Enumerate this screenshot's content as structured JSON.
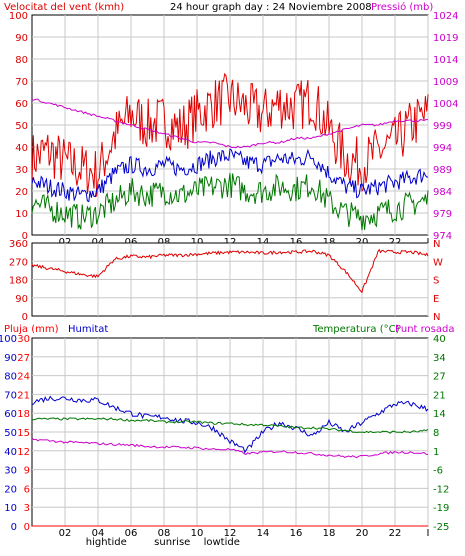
{
  "header": {
    "left": "Velocitat del vent (kmh)",
    "center": "24 hour graph day : 24 Noviembre 2008",
    "right": "Pressió (mb)"
  },
  "colors": {
    "wind": "#e00000",
    "gust": "#e00000",
    "avg": "#0000cc",
    "min": "#007700",
    "pressure": "#cc00cc",
    "dir": "#dd0000",
    "rain": "#ff0000",
    "humidity": "#0000cc",
    "temperature": "#007700",
    "dewpoint": "#cc00cc",
    "grid": "#c8c8c8",
    "frame": "#000000"
  },
  "x_ticks": [
    "02",
    "04",
    "06",
    "08",
    "10",
    "12",
    "14",
    "16",
    "18",
    "20",
    "22",
    "I"
  ],
  "x_marks": {
    "top": [
      {
        "t": 4.5,
        "label": "hightide"
      },
      {
        "t": 8.5,
        "label": "sunrise"
      },
      {
        "t": 11.5,
        "label": "lowtide"
      }
    ],
    "bottom": [
      {
        "t": 4.5,
        "label": "hightide"
      },
      {
        "t": 8.5,
        "label": "sunrise"
      },
      {
        "t": 11.5,
        "label": "lowtide"
      }
    ]
  },
  "chart_data": [
    {
      "type": "line",
      "name": "wind",
      "x_range": [
        0,
        24
      ],
      "yleft_ticks": [
        "100",
        "90",
        "80",
        "70",
        "60",
        "50",
        "40",
        "30",
        "20",
        "10",
        "0"
      ],
      "yleft_range": [
        0,
        100
      ],
      "yright_ticks": [
        "1024",
        "1019",
        "1014",
        "1009",
        "1004",
        "999",
        "994",
        "989",
        "984",
        "979",
        "974"
      ],
      "yright_range": [
        974,
        1024
      ],
      "series": [
        {
          "name": "gust",
          "color": "#e00000",
          "x": [
            0,
            1,
            2,
            3,
            4,
            5,
            6,
            7,
            8,
            9,
            10,
            11,
            12,
            13,
            14,
            15,
            16,
            17,
            18,
            19,
            20,
            21,
            22,
            23,
            24
          ],
          "y": [
            35,
            38,
            33,
            30,
            28,
            45,
            55,
            50,
            52,
            48,
            55,
            60,
            62,
            58,
            55,
            60,
            58,
            62,
            48,
            35,
            32,
            38,
            42,
            50,
            55
          ]
        },
        {
          "name": "avg",
          "color": "#0000cc",
          "x": [
            0,
            1,
            2,
            3,
            4,
            5,
            6,
            7,
            8,
            9,
            10,
            11,
            12,
            13,
            14,
            15,
            16,
            17,
            18,
            19,
            20,
            21,
            22,
            23,
            24
          ],
          "y": [
            25,
            22,
            20,
            18,
            20,
            28,
            32,
            30,
            32,
            30,
            32,
            35,
            36,
            33,
            32,
            35,
            34,
            36,
            28,
            22,
            20,
            22,
            24,
            26,
            28
          ]
        },
        {
          "name": "min",
          "color": "#007700",
          "x": [
            0,
            1,
            2,
            3,
            4,
            5,
            6,
            7,
            8,
            9,
            10,
            11,
            12,
            13,
            14,
            15,
            16,
            17,
            18,
            19,
            20,
            21,
            22,
            23,
            24
          ],
          "y": [
            15,
            12,
            10,
            8,
            10,
            15,
            20,
            18,
            20,
            18,
            20,
            22,
            23,
            20,
            20,
            22,
            21,
            23,
            15,
            10,
            8,
            10,
            12,
            14,
            16
          ]
        },
        {
          "name": "pressure",
          "color": "#cc00cc",
          "axis": "right",
          "x": [
            0,
            1,
            2,
            3,
            4,
            5,
            6,
            7,
            8,
            9,
            10,
            11,
            12,
            13,
            14,
            15,
            16,
            17,
            18,
            19,
            20,
            21,
            22,
            23,
            24
          ],
          "y": [
            1005,
            1004,
            1003,
            1002,
            1001,
            1000,
            999,
            998,
            997,
            996,
            995,
            995,
            994,
            994,
            995,
            995,
            996,
            996,
            997,
            998,
            999,
            999,
            1000,
            1000,
            1000
          ]
        }
      ]
    },
    {
      "type": "line",
      "name": "direction",
      "x_range": [
        0,
        24
      ],
      "yleft_ticks": [
        "360",
        "270",
        "180",
        "90",
        "0"
      ],
      "yleft_range": [
        0,
        360
      ],
      "yright_ticks": [
        "N",
        "W",
        "S",
        "E",
        "N"
      ],
      "series": [
        {
          "name": "direction",
          "color": "#dd0000",
          "x": [
            0,
            1,
            2,
            3,
            4,
            5,
            6,
            7,
            8,
            9,
            10,
            11,
            12,
            13,
            14,
            15,
            16,
            17,
            18,
            19,
            20,
            21,
            22,
            23,
            24
          ],
          "y": [
            250,
            235,
            220,
            205,
            195,
            280,
            295,
            290,
            300,
            300,
            305,
            310,
            315,
            315,
            310,
            315,
            315,
            320,
            300,
            220,
            120,
            320,
            315,
            315,
            300
          ]
        }
      ]
    },
    {
      "type": "line",
      "name": "rain_humidity_temperature",
      "x_range": [
        0,
        24
      ],
      "titles": {
        "rain": "Pluja (mm)",
        "humidity": "Humitat",
        "temp": "Temperatura (°C)",
        "dew": "Punt rosada"
      },
      "yleft_ticks_hum": [
        "100",
        "90",
        "80",
        "70",
        "60",
        "50",
        "40",
        "30",
        "20",
        "10",
        "0"
      ],
      "yleft_ticks_rain": [
        "30",
        "27",
        "24",
        "21",
        "18",
        "15",
        "12",
        "9",
        "6",
        "3",
        "0"
      ],
      "yright_ticks": [
        "40",
        "34",
        "27",
        "21",
        "14",
        "8",
        "1",
        "-6",
        "-12",
        "-19",
        "-25"
      ],
      "yright_range": [
        -25,
        40
      ],
      "series": [
        {
          "name": "rain",
          "color": "#ff0000",
          "x": [
            0,
            24
          ],
          "y": [
            0,
            0
          ]
        },
        {
          "name": "humidity",
          "color": "#0000cc",
          "x": [
            0,
            1,
            2,
            3,
            4,
            5,
            6,
            7,
            8,
            9,
            10,
            11,
            12,
            13,
            14,
            15,
            16,
            17,
            18,
            19,
            20,
            21,
            22,
            23,
            24
          ],
          "y": [
            66,
            68,
            68,
            67,
            67,
            63,
            60,
            58,
            58,
            56,
            55,
            52,
            45,
            40,
            50,
            55,
            52,
            48,
            55,
            50,
            55,
            60,
            65,
            65,
            62
          ]
        },
        {
          "name": "temperature",
          "color": "#007700",
          "axis": "right",
          "x": [
            0,
            1,
            2,
            3,
            4,
            5,
            6,
            7,
            8,
            9,
            10,
            11,
            12,
            13,
            14,
            15,
            16,
            17,
            18,
            19,
            20,
            21,
            22,
            23,
            24
          ],
          "y": [
            12,
            12,
            12,
            12,
            12,
            12,
            11.5,
            11.5,
            11,
            11,
            11,
            10.5,
            10.5,
            10,
            10,
            9.5,
            9,
            9,
            8.5,
            8,
            7.5,
            7.5,
            7.5,
            7.5,
            8
          ]
        },
        {
          "name": "dewpoint",
          "color": "#cc00cc",
          "axis": "right",
          "x": [
            0,
            1,
            2,
            3,
            4,
            5,
            6,
            7,
            8,
            9,
            10,
            11,
            12,
            13,
            14,
            15,
            16,
            17,
            18,
            19,
            20,
            21,
            22,
            23,
            24
          ],
          "y": [
            5,
            4.5,
            4,
            3.8,
            3.5,
            3.2,
            3,
            2.5,
            2.3,
            2.2,
            2,
            1.5,
            1.5,
            0,
            0.5,
            0.8,
            0.5,
            0,
            -0.5,
            -1,
            -1,
            0,
            0.5,
            0.5,
            0
          ]
        }
      ]
    }
  ]
}
